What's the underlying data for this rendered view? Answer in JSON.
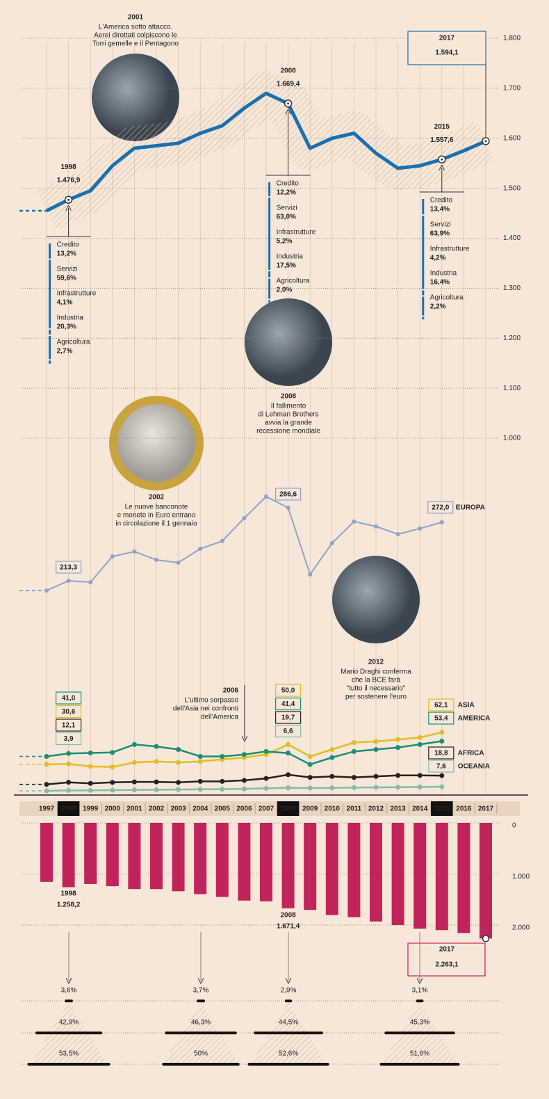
{
  "chart_data": [
    {
      "type": "line",
      "categories": [
        "1997",
        "1998",
        "1999",
        "2000",
        "2001",
        "2002",
        "2003",
        "2004",
        "2005",
        "2006",
        "2007",
        "2008",
        "2009",
        "2010",
        "2011",
        "2012",
        "2013",
        "2014",
        "2015",
        "2016",
        "2017"
      ],
      "values": [
        1455,
        1476.9,
        1495,
        1545,
        1580,
        1585,
        1590,
        1610,
        1625,
        1660,
        1690,
        1669.4,
        1580,
        1600,
        1610,
        1570,
        1540,
        1545,
        1557.6,
        1575,
        1594.1
      ],
      "value_labels": [
        null,
        "1.476,9",
        null,
        null,
        null,
        null,
        null,
        null,
        null,
        null,
        null,
        "1.669,4",
        null,
        null,
        null,
        null,
        null,
        null,
        "1.557,6",
        null,
        "1.594,1"
      ],
      "color": "#1a6fb0",
      "ylim": [
        1000,
        1800
      ],
      "yticks": [
        {
          "value": 1000,
          "label": "1.000"
        },
        {
          "value": 1100,
          "label": "1.100"
        },
        {
          "value": 1200,
          "label": "1.200"
        },
        {
          "value": 1300,
          "label": "1.300"
        },
        {
          "value": 1400,
          "label": "1.400"
        },
        {
          "value": 1500,
          "label": "1.500"
        },
        {
          "value": 1600,
          "label": "1.600"
        },
        {
          "value": 1700,
          "label": "1.700"
        },
        {
          "value": 1800,
          "label": "1.800"
        }
      ],
      "grid": true,
      "breakdowns": [
        [
          {
            "label": "Credito",
            "value": 13.2,
            "value_label": "13,2%"
          },
          {
            "label": "Servizi",
            "value": 59.6,
            "value_label": "59,6%"
          },
          {
            "label": "Infrastrutture",
            "value": 4.1,
            "value_label": "4,1%"
          },
          {
            "label": "Industria",
            "value": 20.3,
            "value_label": "20,3%"
          },
          {
            "label": "Agricoltura",
            "value": 2.7,
            "value_label": "2,7%"
          }
        ],
        [
          {
            "label": "Credito",
            "value": 12.2,
            "value_label": "12,2%"
          },
          {
            "label": "Servizi",
            "value": 63.0,
            "value_label": "63,0%"
          },
          {
            "label": "Infrastrutture",
            "value": 5.2,
            "value_label": "5,2%"
          },
          {
            "label": "Industria",
            "value": 17.5,
            "value_label": "17,5%"
          },
          {
            "label": "Agricoltura",
            "value": 2.0,
            "value_label": "2,0%"
          }
        ],
        [
          {
            "label": "Credito",
            "value": 13.4,
            "value_label": "13,4%"
          },
          {
            "label": "Servizi",
            "value": 63.9,
            "value_label": "63,9%"
          },
          {
            "label": "Infrastrutture",
            "value": 4.2,
            "value_label": "4,2%"
          },
          {
            "label": "Industria",
            "value": 16.4,
            "value_label": "16,4%"
          },
          {
            "label": "Agricoltura",
            "value": 2.2,
            "value_label": "2,2%"
          }
        ]
      ]
    },
    {
      "type": "line",
      "categories": [
        "1997",
        "1998",
        "1999",
        "2000",
        "2001",
        "2002",
        "2003",
        "2004",
        "2005",
        "2006",
        "2007",
        "2008",
        "2009",
        "2010",
        "2011",
        "2012",
        "2013",
        "2014",
        "2015"
      ],
      "series": [
        {
          "name": "EUROPA",
          "color": "#8ea3c9",
          "values": [
            203.5,
            213.3,
            211.9,
            237.7,
            242.6,
            234.3,
            231.5,
            245.4,
            253.1,
            276.1,
            297.7,
            286.6,
            219.6,
            251.0,
            272.7,
            267.8,
            260.1,
            265.7,
            272.0
          ],
          "value_labels": [
            null,
            "213,3",
            null,
            null,
            null,
            null,
            null,
            null,
            null,
            null,
            null,
            "286,6",
            null,
            null,
            null,
            null,
            null,
            null,
            "272,0"
          ]
        }
      ]
    },
    {
      "type": "line",
      "categories": [
        "1997",
        "1998",
        "1999",
        "2000",
        "2001",
        "2002",
        "2003",
        "2004",
        "2005",
        "2006",
        "2007",
        "2008",
        "2009",
        "2010",
        "2011",
        "2012",
        "2013",
        "2014",
        "2015"
      ],
      "series": [
        {
          "name": "ASIA",
          "color": "#e2bd24",
          "values": [
            30,
            30.6,
            28,
            27.5,
            32,
            33,
            32,
            33,
            35,
            37,
            40,
            50.0,
            38,
            45,
            52,
            53,
            55,
            57,
            62.1
          ],
          "value_labels": [
            null,
            "30,6",
            null,
            null,
            null,
            null,
            null,
            null,
            null,
            null,
            null,
            "50,0",
            null,
            null,
            null,
            null,
            null,
            null,
            "62,1"
          ]
        },
        {
          "name": "AMERICA",
          "color": "#1a8f73",
          "values": [
            38,
            41.0,
            41.5,
            42,
            50,
            48,
            45,
            38,
            38,
            40,
            43,
            41.4,
            30,
            37,
            43,
            45,
            47,
            50,
            53.4
          ],
          "value_labels": [
            null,
            "41,0",
            null,
            null,
            null,
            null,
            null,
            null,
            null,
            null,
            null,
            "41,4",
            null,
            null,
            null,
            null,
            null,
            null,
            "53,4"
          ]
        },
        {
          "name": "AFRICA",
          "color": "#222222",
          "values": [
            10,
            12.1,
            11,
            12,
            12.5,
            12.5,
            12,
            13,
            13,
            14,
            16,
            19.7,
            17,
            18,
            17,
            18,
            19,
            19,
            18.8
          ],
          "value_labels": [
            null,
            "12,1",
            null,
            null,
            null,
            null,
            null,
            null,
            null,
            null,
            null,
            "19,7",
            null,
            null,
            null,
            null,
            null,
            null,
            "18,8"
          ]
        },
        {
          "name": "OCEANIA",
          "color": "#7fbfa8",
          "values": [
            3.5,
            3.9,
            4,
            4.2,
            4.5,
            4.6,
            4.8,
            5,
            5.2,
            5.5,
            6,
            6.6,
            6.3,
            6.5,
            6.8,
            7,
            7.2,
            7.4,
            7.6
          ],
          "value_labels": [
            null,
            "3,9",
            null,
            null,
            null,
            null,
            null,
            null,
            null,
            null,
            null,
            "6,6",
            null,
            null,
            null,
            null,
            null,
            null,
            "7,6"
          ]
        }
      ]
    },
    {
      "type": "bar",
      "categories": [
        "1997",
        "1998",
        "1999",
        "2000",
        "2001",
        "2002",
        "2003",
        "2004",
        "2005",
        "2006",
        "2007",
        "2008",
        "2009",
        "2010",
        "2011",
        "2012",
        "2013",
        "2014",
        "2015",
        "2016",
        "2017"
      ],
      "values": [
        1155,
        1258.2,
        1197,
        1240,
        1296,
        1296,
        1338,
        1394,
        1450,
        1521,
        1535,
        1671.4,
        1704,
        1803,
        1845,
        1930,
        2000,
        2070,
        2099,
        2155,
        2263.1
      ],
      "value_labels": [
        null,
        "1.258,2",
        null,
        null,
        null,
        null,
        null,
        null,
        null,
        null,
        null,
        "1.671,4",
        null,
        null,
        null,
        null,
        null,
        null,
        null,
        null,
        "2.263,1"
      ],
      "color": "#c0245a",
      "ylim": [
        0,
        2300
      ],
      "yticks": [
        0,
        {
          "value": 1000,
          "label": "1.000"
        },
        {
          "value": 2000,
          "label": "2.000"
        }
      ],
      "highlight": [
        "1998",
        "2008",
        "2015"
      ]
    }
  ],
  "annotations": {
    "events": [
      {
        "year": "2001",
        "lines": [
          "L'America sotto attacco.",
          "Aerei dirottati colpiscono le",
          "Torri gemelle e il Pentagono"
        ]
      },
      {
        "year": "2008",
        "lines": [
          "Il fallimento",
          "di Lehman Brothers",
          "avvia la grande",
          "recessione mondiale"
        ]
      },
      {
        "year": "2002",
        "lines": [
          "Le nuove banconote",
          "e monete in Euro entrano",
          "in circolazione il 1 gennaio"
        ]
      },
      {
        "year": "2006",
        "lines": [
          "L'ultimo sorpasso",
          "dell'Asia nei confronti",
          "dell'America"
        ]
      },
      {
        "year": "2012",
        "lines": [
          "Mario Draghi conferma",
          "che la BCE farà",
          "\"tutto il necessario\"",
          "per sostenere l'euro"
        ]
      }
    ],
    "bottom_stats": [
      {
        "values": [
          3.6,
          42.9,
          53.5
        ],
        "labels": [
          "3,6%",
          "42,9%",
          "53,5%"
        ]
      },
      {
        "values": [
          3.7,
          46.3,
          50
        ],
        "labels": [
          "3,7%",
          "46,3%",
          "50%"
        ]
      },
      {
        "values": [
          2.9,
          44.5,
          52.6
        ],
        "labels": [
          "2,9%",
          "44,5%",
          "52,6%"
        ]
      },
      {
        "values": [
          3.1,
          45.3,
          51.6
        ],
        "labels": [
          "3,1%",
          "45,3%",
          "51,6%"
        ]
      }
    ]
  }
}
